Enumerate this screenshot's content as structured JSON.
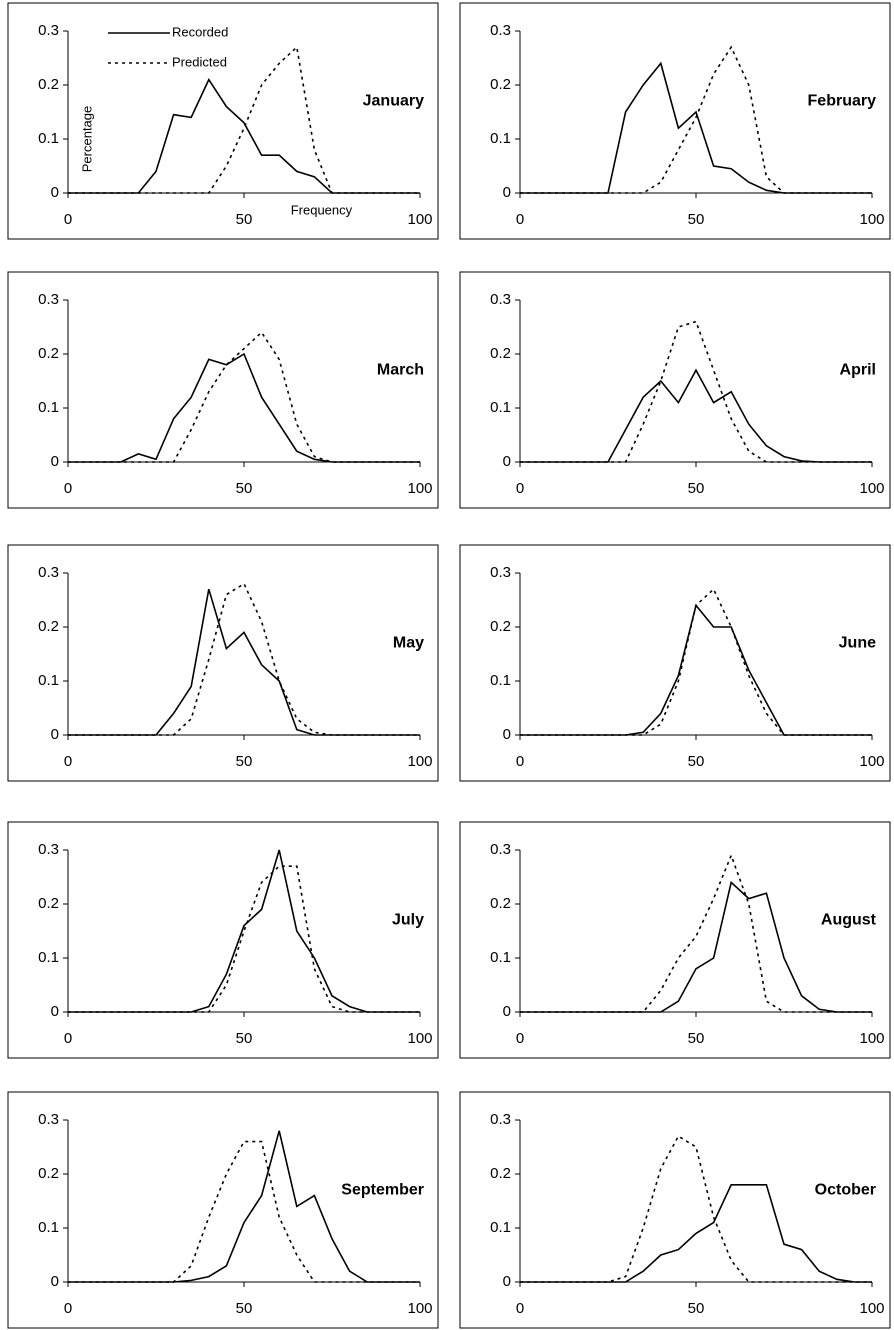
{
  "chart_data": [
    {
      "type": "line",
      "title": "January",
      "y_label": "Percentage",
      "x_label": "Frequency",
      "legend": "top-left",
      "x": [
        0,
        5,
        10,
        15,
        20,
        25,
        30,
        35,
        40,
        45,
        50,
        55,
        60,
        65,
        70,
        75,
        80,
        85,
        90,
        95,
        100
      ],
      "xlim": [
        0,
        100
      ],
      "ylim": [
        0,
        0.3
      ],
      "xticks": [
        0,
        50,
        100
      ],
      "yticks": [
        0,
        0.1,
        0.2,
        0.3
      ],
      "series": [
        {
          "name": "Recorded",
          "color": "#000000",
          "style": "solid",
          "values": [
            0,
            0,
            0,
            0,
            0,
            0.04,
            0.145,
            0.14,
            0.21,
            0.16,
            0.13,
            0.07,
            0.07,
            0.04,
            0.03,
            0,
            0,
            0,
            0,
            0,
            0
          ]
        },
        {
          "name": "Predicted",
          "color": "#000000",
          "style": "dotted",
          "values": [
            0,
            0,
            0,
            0,
            0,
            0,
            0,
            0,
            0,
            0.05,
            0.12,
            0.2,
            0.24,
            0.27,
            0.08,
            0,
            0,
            0,
            0,
            0,
            0
          ]
        }
      ]
    },
    {
      "type": "line",
      "title": "February",
      "x": [
        0,
        5,
        10,
        15,
        20,
        25,
        30,
        35,
        40,
        45,
        50,
        55,
        60,
        65,
        70,
        75,
        80,
        85,
        90,
        95,
        100
      ],
      "xlim": [
        0,
        100
      ],
      "ylim": [
        0,
        0.3
      ],
      "xticks": [
        0,
        50,
        100
      ],
      "yticks": [
        0,
        0.1,
        0.2,
        0.3
      ],
      "series": [
        {
          "color": "#000000",
          "style": "solid",
          "values": [
            0,
            0,
            0,
            0,
            0,
            0,
            0.15,
            0.2,
            0.24,
            0.12,
            0.15,
            0.05,
            0.045,
            0.02,
            0.005,
            0,
            0,
            0,
            0,
            0,
            0
          ]
        },
        {
          "color": "#000000",
          "style": "dotted",
          "values": [
            0,
            0,
            0,
            0,
            0,
            0,
            0,
            0,
            0.02,
            0.08,
            0.14,
            0.22,
            0.27,
            0.2,
            0.03,
            0,
            0,
            0,
            0,
            0,
            0
          ]
        }
      ]
    },
    {
      "type": "line",
      "title": "March",
      "x": [
        0,
        5,
        10,
        15,
        20,
        25,
        30,
        35,
        40,
        45,
        50,
        55,
        60,
        65,
        70,
        75,
        80,
        85,
        90,
        95,
        100
      ],
      "xlim": [
        0,
        100
      ],
      "ylim": [
        0,
        0.3
      ],
      "xticks": [
        0,
        50,
        100
      ],
      "yticks": [
        0,
        0.1,
        0.2,
        0.3
      ],
      "series": [
        {
          "color": "#000000",
          "style": "solid",
          "values": [
            0,
            0,
            0,
            0,
            0.015,
            0.005,
            0.08,
            0.12,
            0.19,
            0.18,
            0.2,
            0.12,
            0.07,
            0.02,
            0.005,
            0,
            0,
            0,
            0,
            0,
            0
          ]
        },
        {
          "color": "#000000",
          "style": "dotted",
          "values": [
            0,
            0,
            0,
            0,
            0,
            0,
            0,
            0.06,
            0.13,
            0.18,
            0.21,
            0.24,
            0.19,
            0.07,
            0.01,
            0,
            0,
            0,
            0,
            0,
            0
          ]
        }
      ]
    },
    {
      "type": "line",
      "title": "April",
      "x": [
        0,
        5,
        10,
        15,
        20,
        25,
        30,
        35,
        40,
        45,
        50,
        55,
        60,
        65,
        70,
        75,
        80,
        85,
        90,
        95,
        100
      ],
      "xlim": [
        0,
        100
      ],
      "ylim": [
        0,
        0.3
      ],
      "xticks": [
        0,
        50,
        100
      ],
      "yticks": [
        0,
        0.1,
        0.2,
        0.3
      ],
      "series": [
        {
          "color": "#000000",
          "style": "solid",
          "values": [
            0,
            0,
            0,
            0,
            0,
            0,
            0.06,
            0.12,
            0.15,
            0.11,
            0.17,
            0.11,
            0.13,
            0.07,
            0.03,
            0.01,
            0.002,
            0,
            0,
            0,
            0
          ]
        },
        {
          "color": "#000000",
          "style": "dotted",
          "values": [
            0,
            0,
            0,
            0,
            0,
            0,
            0,
            0.07,
            0.15,
            0.25,
            0.26,
            0.17,
            0.08,
            0.02,
            0,
            0,
            0,
            0,
            0,
            0,
            0
          ]
        }
      ]
    },
    {
      "type": "line",
      "title": "May",
      "x": [
        0,
        5,
        10,
        15,
        20,
        25,
        30,
        35,
        40,
        45,
        50,
        55,
        60,
        65,
        70,
        75,
        80,
        85,
        90,
        95,
        100
      ],
      "xlim": [
        0,
        100
      ],
      "ylim": [
        0,
        0.3
      ],
      "xticks": [
        0,
        50,
        100
      ],
      "yticks": [
        0,
        0.1,
        0.2,
        0.3
      ],
      "series": [
        {
          "color": "#000000",
          "style": "solid",
          "values": [
            0,
            0,
            0,
            0,
            0,
            0,
            0.04,
            0.09,
            0.27,
            0.16,
            0.19,
            0.13,
            0.1,
            0.01,
            0,
            0,
            0,
            0,
            0,
            0,
            0
          ]
        },
        {
          "color": "#000000",
          "style": "dotted",
          "values": [
            0,
            0,
            0,
            0,
            0,
            0,
            0,
            0.03,
            0.14,
            0.26,
            0.28,
            0.21,
            0.1,
            0.03,
            0.005,
            0,
            0,
            0,
            0,
            0,
            0
          ]
        }
      ]
    },
    {
      "type": "line",
      "title": "June",
      "x": [
        0,
        5,
        10,
        15,
        20,
        25,
        30,
        35,
        40,
        45,
        50,
        55,
        60,
        65,
        70,
        75,
        80,
        85,
        90,
        95,
        100
      ],
      "xlim": [
        0,
        100
      ],
      "ylim": [
        0,
        0.3
      ],
      "xticks": [
        0,
        50,
        100
      ],
      "yticks": [
        0,
        0.1,
        0.2,
        0.3
      ],
      "series": [
        {
          "color": "#000000",
          "style": "solid",
          "values": [
            0,
            0,
            0,
            0,
            0,
            0,
            0,
            0.005,
            0.04,
            0.11,
            0.24,
            0.2,
            0.2,
            0.12,
            0.06,
            0,
            0,
            0,
            0,
            0,
            0
          ]
        },
        {
          "color": "#000000",
          "style": "dotted",
          "values": [
            0,
            0,
            0,
            0,
            0,
            0,
            0,
            0,
            0.02,
            0.1,
            0.24,
            0.27,
            0.2,
            0.11,
            0.04,
            0,
            0,
            0,
            0,
            0,
            0
          ]
        }
      ]
    },
    {
      "type": "line",
      "title": "July",
      "x": [
        0,
        5,
        10,
        15,
        20,
        25,
        30,
        35,
        40,
        45,
        50,
        55,
        60,
        65,
        70,
        75,
        80,
        85,
        90,
        95,
        100
      ],
      "xlim": [
        0,
        100
      ],
      "ylim": [
        0,
        0.3
      ],
      "xticks": [
        0,
        50,
        100
      ],
      "yticks": [
        0,
        0.1,
        0.2,
        0.3
      ],
      "series": [
        {
          "color": "#000000",
          "style": "solid",
          "values": [
            0,
            0,
            0,
            0,
            0,
            0,
            0,
            0,
            0.01,
            0.07,
            0.16,
            0.19,
            0.3,
            0.15,
            0.1,
            0.03,
            0.01,
            0,
            0,
            0,
            0
          ]
        },
        {
          "color": "#000000",
          "style": "dotted",
          "values": [
            0,
            0,
            0,
            0,
            0,
            0,
            0,
            0,
            0,
            0.05,
            0.15,
            0.24,
            0.27,
            0.27,
            0.08,
            0.01,
            0,
            0,
            0,
            0,
            0
          ]
        }
      ]
    },
    {
      "type": "line",
      "title": "August",
      "x": [
        0,
        5,
        10,
        15,
        20,
        25,
        30,
        35,
        40,
        45,
        50,
        55,
        60,
        65,
        70,
        75,
        80,
        85,
        90,
        95,
        100
      ],
      "xlim": [
        0,
        100
      ],
      "ylim": [
        0,
        0.3
      ],
      "xticks": [
        0,
        50,
        100
      ],
      "yticks": [
        0,
        0.1,
        0.2,
        0.3
      ],
      "series": [
        {
          "color": "#000000",
          "style": "solid",
          "values": [
            0,
            0,
            0,
            0,
            0,
            0,
            0,
            0,
            0,
            0.02,
            0.08,
            0.1,
            0.24,
            0.21,
            0.22,
            0.1,
            0.03,
            0.005,
            0,
            0,
            0
          ]
        },
        {
          "color": "#000000",
          "style": "dotted",
          "values": [
            0,
            0,
            0,
            0,
            0,
            0,
            0,
            0,
            0.04,
            0.1,
            0.14,
            0.21,
            0.29,
            0.2,
            0.02,
            0,
            0,
            0,
            0,
            0,
            0
          ]
        }
      ]
    },
    {
      "type": "line",
      "title": "September",
      "x": [
        0,
        5,
        10,
        15,
        20,
        25,
        30,
        35,
        40,
        45,
        50,
        55,
        60,
        65,
        70,
        75,
        80,
        85,
        90,
        95,
        100
      ],
      "xlim": [
        0,
        100
      ],
      "ylim": [
        0,
        0.3
      ],
      "xticks": [
        0,
        50,
        100
      ],
      "yticks": [
        0,
        0.1,
        0.2,
        0.3
      ],
      "series": [
        {
          "color": "#000000",
          "style": "solid",
          "values": [
            0,
            0,
            0,
            0,
            0,
            0,
            0,
            0.003,
            0.01,
            0.03,
            0.11,
            0.16,
            0.28,
            0.14,
            0.16,
            0.08,
            0.02,
            0,
            0,
            0,
            0
          ]
        },
        {
          "color": "#000000",
          "style": "dotted",
          "values": [
            0,
            0,
            0,
            0,
            0,
            0,
            0,
            0.03,
            0.12,
            0.2,
            0.26,
            0.26,
            0.12,
            0.05,
            0,
            0,
            0,
            0,
            0,
            0,
            0
          ]
        }
      ]
    },
    {
      "type": "line",
      "title": "October",
      "x": [
        0,
        5,
        10,
        15,
        20,
        25,
        30,
        35,
        40,
        45,
        50,
        55,
        60,
        65,
        70,
        75,
        80,
        85,
        90,
        95,
        100
      ],
      "xlim": [
        0,
        100
      ],
      "ylim": [
        0,
        0.3
      ],
      "xticks": [
        0,
        50,
        100
      ],
      "yticks": [
        0,
        0.1,
        0.2,
        0.3
      ],
      "series": [
        {
          "color": "#000000",
          "style": "solid",
          "values": [
            0,
            0,
            0,
            0,
            0,
            0,
            0,
            0.02,
            0.05,
            0.06,
            0.09,
            0.11,
            0.18,
            0.18,
            0.18,
            0.07,
            0.06,
            0.02,
            0.005,
            0,
            0
          ]
        },
        {
          "color": "#000000",
          "style": "dotted",
          "values": [
            0,
            0,
            0,
            0,
            0,
            0,
            0.01,
            0.1,
            0.21,
            0.27,
            0.25,
            0.12,
            0.04,
            0,
            0,
            0,
            0,
            0,
            0,
            0,
            0
          ]
        }
      ]
    }
  ]
}
